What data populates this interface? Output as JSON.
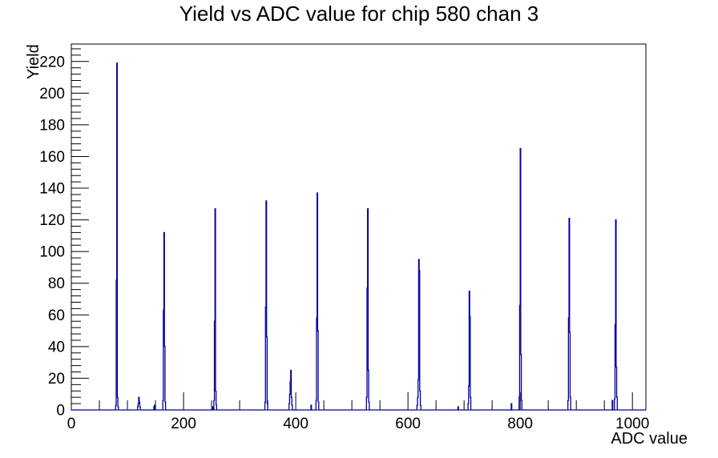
{
  "chart_data": {
    "type": "bar",
    "subtype": "histogram-outline",
    "title": "Yield vs ADC value for chip 580 chan 3",
    "xlabel": "ADC value",
    "ylabel": "Yield",
    "xlim": [
      0,
      1024
    ],
    "ylim": [
      0,
      231
    ],
    "x_major_ticks": [
      0,
      200,
      400,
      600,
      800,
      1000
    ],
    "x_minor_step": 50,
    "y_major_ticks": [
      0,
      20,
      40,
      60,
      80,
      100,
      120,
      140,
      160,
      180,
      200,
      220
    ],
    "y_minor_step": 4,
    "grid": false,
    "legend": false,
    "line_color": "#0000a0",
    "axis_color": "#000000",
    "background_color": "#ffffff",
    "bin_width": 1,
    "bins": [
      [
        79,
        3
      ],
      [
        80,
        82
      ],
      [
        81,
        219
      ],
      [
        82,
        8
      ],
      [
        83,
        2
      ],
      [
        118,
        2
      ],
      [
        119,
        4
      ],
      [
        120,
        8
      ],
      [
        121,
        5
      ],
      [
        122,
        2
      ],
      [
        147,
        2
      ],
      [
        148,
        3
      ],
      [
        163,
        6
      ],
      [
        164,
        63
      ],
      [
        165,
        112
      ],
      [
        166,
        40
      ],
      [
        167,
        5
      ],
      [
        252,
        2
      ],
      [
        254,
        6
      ],
      [
        255,
        56
      ],
      [
        256,
        127
      ],
      [
        257,
        12
      ],
      [
        258,
        3
      ],
      [
        345,
        5
      ],
      [
        346,
        65
      ],
      [
        347,
        132
      ],
      [
        348,
        46
      ],
      [
        349,
        4
      ],
      [
        388,
        4
      ],
      [
        389,
        10
      ],
      [
        390,
        18
      ],
      [
        391,
        25
      ],
      [
        392,
        8
      ],
      [
        393,
        3
      ],
      [
        427,
        3
      ],
      [
        436,
        6
      ],
      [
        437,
        58
      ],
      [
        438,
        137
      ],
      [
        439,
        50
      ],
      [
        440,
        5
      ],
      [
        526,
        8
      ],
      [
        527,
        77
      ],
      [
        528,
        127
      ],
      [
        529,
        25
      ],
      [
        530,
        5
      ],
      [
        616,
        3
      ],
      [
        617,
        8
      ],
      [
        618,
        19
      ],
      [
        619,
        95
      ],
      [
        620,
        88
      ],
      [
        621,
        12
      ],
      [
        622,
        3
      ],
      [
        689,
        2
      ],
      [
        707,
        4
      ],
      [
        708,
        15
      ],
      [
        709,
        75
      ],
      [
        710,
        59
      ],
      [
        711,
        8
      ],
      [
        784,
        4
      ],
      [
        798,
        8
      ],
      [
        799,
        66
      ],
      [
        800,
        165
      ],
      [
        801,
        35
      ],
      [
        802,
        6
      ],
      [
        885,
        6
      ],
      [
        886,
        58
      ],
      [
        887,
        121
      ],
      [
        888,
        49
      ],
      [
        889,
        8
      ],
      [
        964,
        6
      ],
      [
        968,
        7
      ],
      [
        969,
        54
      ],
      [
        970,
        120
      ],
      [
        971,
        27
      ],
      [
        972,
        8
      ]
    ]
  }
}
